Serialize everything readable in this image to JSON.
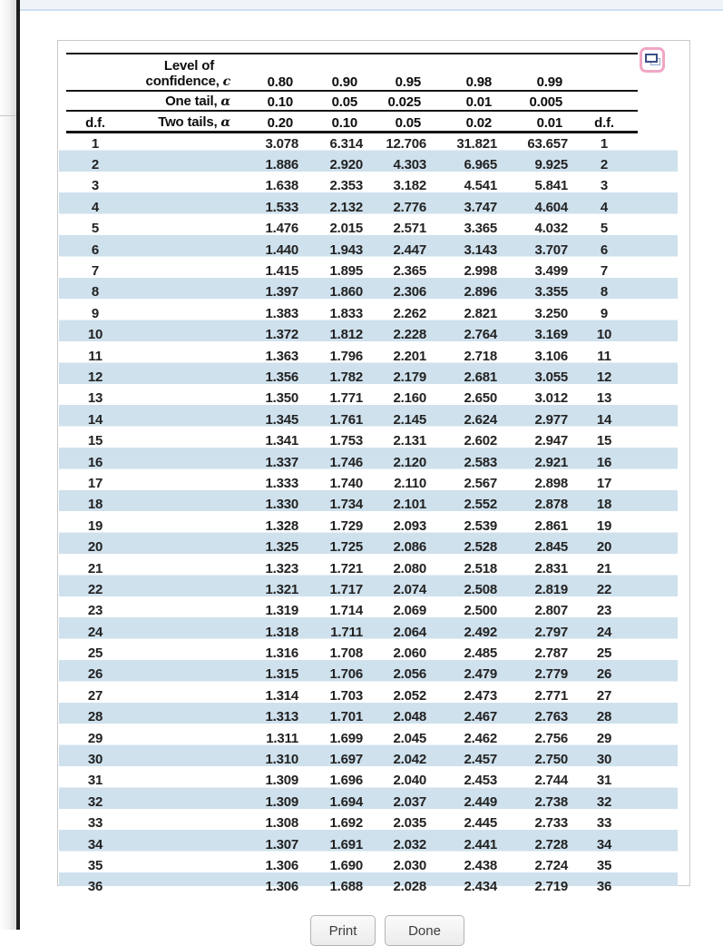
{
  "panel": {
    "header": {
      "level_of": "Level of",
      "confidence_text": "confidence,",
      "confidence_sym": "c",
      "confidence_values": [
        "0.80",
        "0.90",
        "0.95",
        "0.98",
        "0.99"
      ],
      "one_tail_text": "One tail,",
      "one_tail_sym": "α",
      "one_tail_values": [
        "0.10",
        "0.05",
        "0.025",
        "0.01",
        "0.005"
      ],
      "df_label_left": "d.f.",
      "two_tails_text": "Two tails,",
      "two_tails_sym": "α",
      "two_tails_values": [
        "0.20",
        "0.10",
        "0.05",
        "0.02",
        "0.01"
      ],
      "df_label_right": "d.f."
    },
    "stripe_color": "#cfe1ed",
    "expand_icon": "overlapping-windows-icon",
    "rows": [
      {
        "df": "1",
        "values": [
          "3.078",
          "6.314",
          "12.706",
          "31.821",
          "63.657"
        ]
      },
      {
        "df": "2",
        "values": [
          "1.886",
          "2.920",
          "4.303",
          "6.965",
          "9.925"
        ]
      },
      {
        "df": "3",
        "values": [
          "1.638",
          "2.353",
          "3.182",
          "4.541",
          "5.841"
        ]
      },
      {
        "df": "4",
        "values": [
          "1.533",
          "2.132",
          "2.776",
          "3.747",
          "4.604"
        ]
      },
      {
        "df": "5",
        "values": [
          "1.476",
          "2.015",
          "2.571",
          "3.365",
          "4.032"
        ]
      },
      {
        "df": "6",
        "values": [
          "1.440",
          "1.943",
          "2.447",
          "3.143",
          "3.707"
        ]
      },
      {
        "df": "7",
        "values": [
          "1.415",
          "1.895",
          "2.365",
          "2.998",
          "3.499"
        ]
      },
      {
        "df": "8",
        "values": [
          "1.397",
          "1.860",
          "2.306",
          "2.896",
          "3.355"
        ]
      },
      {
        "df": "9",
        "values": [
          "1.383",
          "1.833",
          "2.262",
          "2.821",
          "3.250"
        ]
      },
      {
        "df": "10",
        "values": [
          "1.372",
          "1.812",
          "2.228",
          "2.764",
          "3.169"
        ]
      },
      {
        "df": "11",
        "values": [
          "1.363",
          "1.796",
          "2.201",
          "2.718",
          "3.106"
        ]
      },
      {
        "df": "12",
        "values": [
          "1.356",
          "1.782",
          "2.179",
          "2.681",
          "3.055"
        ]
      },
      {
        "df": "13",
        "values": [
          "1.350",
          "1.771",
          "2.160",
          "2.650",
          "3.012"
        ]
      },
      {
        "df": "14",
        "values": [
          "1.345",
          "1.761",
          "2.145",
          "2.624",
          "2.977"
        ]
      },
      {
        "df": "15",
        "values": [
          "1.341",
          "1.753",
          "2.131",
          "2.602",
          "2.947"
        ]
      },
      {
        "df": "16",
        "values": [
          "1.337",
          "1.746",
          "2.120",
          "2.583",
          "2.921"
        ]
      },
      {
        "df": "17",
        "values": [
          "1.333",
          "1.740",
          "2.110",
          "2.567",
          "2.898"
        ]
      },
      {
        "df": "18",
        "values": [
          "1.330",
          "1.734",
          "2.101",
          "2.552",
          "2.878"
        ]
      },
      {
        "df": "19",
        "values": [
          "1.328",
          "1.729",
          "2.093",
          "2.539",
          "2.861"
        ]
      },
      {
        "df": "20",
        "values": [
          "1.325",
          "1.725",
          "2.086",
          "2.528",
          "2.845"
        ]
      },
      {
        "df": "21",
        "values": [
          "1.323",
          "1.721",
          "2.080",
          "2.518",
          "2.831"
        ]
      },
      {
        "df": "22",
        "values": [
          "1.321",
          "1.717",
          "2.074",
          "2.508",
          "2.819"
        ]
      },
      {
        "df": "23",
        "values": [
          "1.319",
          "1.714",
          "2.069",
          "2.500",
          "2.807"
        ]
      },
      {
        "df": "24",
        "values": [
          "1.318",
          "1.711",
          "2.064",
          "2.492",
          "2.797"
        ]
      },
      {
        "df": "25",
        "values": [
          "1.316",
          "1.708",
          "2.060",
          "2.485",
          "2.787"
        ]
      },
      {
        "df": "26",
        "values": [
          "1.315",
          "1.706",
          "2.056",
          "2.479",
          "2.779"
        ]
      },
      {
        "df": "27",
        "values": [
          "1.314",
          "1.703",
          "2.052",
          "2.473",
          "2.771"
        ]
      },
      {
        "df": "28",
        "values": [
          "1.313",
          "1.701",
          "2.048",
          "2.467",
          "2.763"
        ]
      },
      {
        "df": "29",
        "values": [
          "1.311",
          "1.699",
          "2.045",
          "2.462",
          "2.756"
        ]
      },
      {
        "df": "30",
        "values": [
          "1.310",
          "1.697",
          "2.042",
          "2.457",
          "2.750"
        ]
      },
      {
        "df": "31",
        "values": [
          "1.309",
          "1.696",
          "2.040",
          "2.453",
          "2.744"
        ]
      },
      {
        "df": "32",
        "values": [
          "1.309",
          "1.694",
          "2.037",
          "2.449",
          "2.738"
        ]
      },
      {
        "df": "33",
        "values": [
          "1.308",
          "1.692",
          "2.035",
          "2.445",
          "2.733"
        ]
      },
      {
        "df": "34",
        "values": [
          "1.307",
          "1.691",
          "2.032",
          "2.441",
          "2.728"
        ]
      },
      {
        "df": "35",
        "values": [
          "1.306",
          "1.690",
          "2.030",
          "2.438",
          "2.724"
        ]
      },
      {
        "df": "36",
        "values": [
          "1.306",
          "1.688",
          "2.028",
          "2.434",
          "2.719"
        ]
      }
    ]
  },
  "buttons": {
    "print": "Print",
    "done": "Done"
  }
}
